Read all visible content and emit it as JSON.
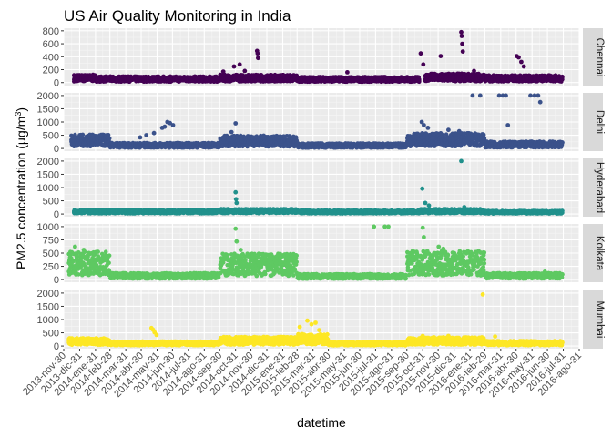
{
  "chart_data": {
    "type": "scatter",
    "title": "US Air Quality Monitoring in India",
    "xlabel": "datetime",
    "ylabel": "PM2.5 concentration (μg/m",
    "ylabel_superscript": "3",
    "ylabel_close": ")",
    "xlim": [
      "2013-11-30",
      "2016-08-31"
    ],
    "x_ticks": [
      "2013-nov-30",
      "2013-dic-31",
      "2014-ene-31",
      "2014-feb-28",
      "2014-mar-31",
      "2014-abr-30",
      "2014-may-31",
      "2014-jun-30",
      "2014-jul-31",
      "2014-ago-31",
      "2014-sep-30",
      "2014-oct-31",
      "2014-nov-30",
      "2014-dic-31",
      "2015-ene-31",
      "2015-feb-28",
      "2015-mar-31",
      "2015-abr-30",
      "2015-may-31",
      "2015-jun-30",
      "2015-jul-31",
      "2015-ago-31",
      "2015-sep-30",
      "2015-oct-31",
      "2015-nov-30",
      "2015-dic-31",
      "2016-ene-31",
      "2016-feb-29",
      "2016-mar-31",
      "2016-abr-30",
      "2016-may-31",
      "2016-jun-30",
      "2016-jul-31",
      "2016-ago-31"
    ],
    "x_tick_dates": [
      "2013-11-30",
      "2013-12-31",
      "2014-01-31",
      "2014-02-28",
      "2014-03-31",
      "2014-04-30",
      "2014-05-31",
      "2014-06-30",
      "2014-07-31",
      "2014-08-31",
      "2014-09-30",
      "2014-10-31",
      "2014-11-30",
      "2014-12-31",
      "2015-01-31",
      "2015-02-28",
      "2015-03-31",
      "2015-04-30",
      "2015-05-31",
      "2015-06-30",
      "2015-07-31",
      "2015-08-31",
      "2015-09-30",
      "2015-10-31",
      "2015-11-30",
      "2015-12-31",
      "2016-01-31",
      "2016-02-29",
      "2016-03-31",
      "2016-04-30",
      "2016-05-31",
      "2016-06-30",
      "2016-07-31",
      "2016-08-31"
    ],
    "grid": true,
    "legend": "none",
    "panels": [
      {
        "name": "Chennai",
        "color": "#440154",
        "ylim": [
          -60,
          840
        ],
        "y_ticks": [
          0,
          200,
          400,
          600,
          800
        ],
        "y_tick_labels": [
          "0",
          "200",
          "400",
          "600",
          "800"
        ],
        "series": [
          {
            "start": "2013-12-20",
            "end": "2014-01-31",
            "base": 70
          },
          {
            "start": "2014-02-01",
            "end": "2014-09-30",
            "base": 55
          },
          {
            "start": "2014-10-01",
            "end": "2015-02-28",
            "base": 70
          },
          {
            "start": "2015-03-01",
            "end": "2015-10-25",
            "base": 50
          },
          {
            "start": "2015-11-05",
            "end": "2016-02-29",
            "base": 80
          },
          {
            "start": "2016-03-01",
            "end": "2016-07-31",
            "base": 65
          }
        ],
        "outliers": [
          [
            "2014-10-07",
            170
          ],
          [
            "2014-10-28",
            250
          ],
          [
            "2014-11-08",
            280
          ],
          [
            "2014-11-18",
            180
          ],
          [
            "2014-12-12",
            490
          ],
          [
            "2014-12-13",
            450
          ],
          [
            "2014-12-14",
            380
          ],
          [
            "2015-06-06",
            160
          ],
          [
            "2015-10-27",
            450
          ],
          [
            "2015-11-01",
            280
          ],
          [
            "2015-12-05",
            410
          ],
          [
            "2016-01-14",
            780
          ],
          [
            "2016-01-15",
            720
          ],
          [
            "2016-01-16",
            600
          ],
          [
            "2016-01-17",
            480
          ],
          [
            "2016-02-08",
            180
          ],
          [
            "2016-05-01",
            410
          ],
          [
            "2016-05-05",
            390
          ],
          [
            "2016-05-10",
            320
          ],
          [
            "2016-05-15",
            250
          ]
        ]
      },
      {
        "name": "Delhi",
        "color": "#3b528b",
        "ylim": [
          -100,
          2100
        ],
        "y_ticks": [
          0,
          500,
          1000,
          1500,
          2000
        ],
        "y_tick_labels": [
          "0",
          "500",
          "1000",
          "1500",
          "2000"
        ],
        "series": [
          {
            "start": "2013-12-15",
            "end": "2014-02-28",
            "base": 300
          },
          {
            "start": "2014-03-01",
            "end": "2014-09-30",
            "base": 120
          },
          {
            "start": "2014-10-01",
            "end": "2015-02-28",
            "base": 280
          },
          {
            "start": "2015-03-01",
            "end": "2015-09-30",
            "base": 110
          },
          {
            "start": "2015-10-01",
            "end": "2016-02-29",
            "base": 330
          },
          {
            "start": "2016-03-01",
            "end": "2016-07-31",
            "base": 150
          }
        ],
        "outliers": [
          [
            "2014-04-28",
            420
          ],
          [
            "2014-05-10",
            500
          ],
          [
            "2014-05-25",
            580
          ],
          [
            "2014-06-10",
            780
          ],
          [
            "2014-06-15",
            820
          ],
          [
            "2014-06-20",
            1000
          ],
          [
            "2014-06-25",
            960
          ],
          [
            "2014-07-01",
            880
          ],
          [
            "2014-10-31",
            950
          ],
          [
            "2014-10-23",
            620
          ],
          [
            "2015-10-29",
            1000
          ],
          [
            "2015-11-02",
            880
          ],
          [
            "2015-11-10",
            780
          ],
          [
            "2015-12-20",
            700
          ],
          [
            "2016-01-10",
            650
          ],
          [
            "2016-02-05",
            2000
          ],
          [
            "2016-02-20",
            2000
          ],
          [
            "2016-03-28",
            2000
          ],
          [
            "2016-04-04",
            2000
          ],
          [
            "2016-04-10",
            2000
          ],
          [
            "2016-04-14",
            880
          ],
          [
            "2016-05-28",
            2000
          ],
          [
            "2016-06-05",
            2000
          ],
          [
            "2016-06-12",
            2000
          ],
          [
            "2016-06-16",
            1750
          ]
        ]
      },
      {
        "name": "Hyderabad",
        "color": "#21918c",
        "ylim": [
          -100,
          2100
        ],
        "y_ticks": [
          0,
          500,
          1000,
          1500,
          2000
        ],
        "y_tick_labels": [
          "0",
          "500",
          "1000",
          "1500",
          "2000"
        ],
        "series": [
          {
            "start": "2013-12-20",
            "end": "2014-09-30",
            "base": 90
          },
          {
            "start": "2014-10-01",
            "end": "2015-02-28",
            "base": 110
          },
          {
            "start": "2015-03-01",
            "end": "2015-10-25",
            "base": 80
          },
          {
            "start": "2015-10-26",
            "end": "2016-02-29",
            "base": 110
          },
          {
            "start": "2016-03-01",
            "end": "2016-07-31",
            "base": 70
          }
        ],
        "outliers": [
          [
            "2014-10-31",
            820
          ],
          [
            "2014-11-01",
            560
          ],
          [
            "2014-11-02",
            420
          ],
          [
            "2015-10-30",
            960
          ],
          [
            "2015-11-05",
            420
          ],
          [
            "2015-11-12",
            320
          ],
          [
            "2016-01-14",
            2000
          ],
          [
            "2016-01-20",
            260
          ]
        ]
      },
      {
        "name": "Kolkata",
        "color": "#5ec962",
        "ylim": [
          -50,
          1050
        ],
        "y_ticks": [
          0,
          250,
          500,
          750,
          1000
        ],
        "y_tick_labels": [
          "0",
          "250",
          "500",
          "750",
          "1000"
        ],
        "series": [
          {
            "start": "2013-12-10",
            "end": "2014-02-28",
            "base": 300
          },
          {
            "start": "2014-03-01",
            "end": "2014-09-30",
            "base": 70
          },
          {
            "start": "2014-10-01",
            "end": "2015-02-28",
            "base": 280
          },
          {
            "start": "2015-03-01",
            "end": "2015-09-30",
            "base": 60
          },
          {
            "start": "2015-10-01",
            "end": "2016-02-29",
            "base": 310
          },
          {
            "start": "2016-03-01",
            "end": "2016-07-31",
            "base": 70
          }
        ],
        "outliers": [
          [
            "2013-12-22",
            620
          ],
          [
            "2014-01-08",
            560
          ],
          [
            "2014-02-05",
            440
          ],
          [
            "2014-10-31",
            960
          ],
          [
            "2014-11-02",
            720
          ],
          [
            "2014-11-10",
            560
          ],
          [
            "2015-07-28",
            1000
          ],
          [
            "2015-08-18",
            1000
          ],
          [
            "2015-08-25",
            1000
          ],
          [
            "2015-10-31",
            980
          ],
          [
            "2015-11-02",
            800
          ],
          [
            "2015-12-01",
            620
          ],
          [
            "2015-12-10",
            580
          ],
          [
            "2016-01-10",
            420
          ],
          [
            "2016-06-25",
            150
          ]
        ]
      },
      {
        "name": "Mumbai",
        "color": "#fde725",
        "ylim": [
          -100,
          2100
        ],
        "y_ticks": [
          0,
          500,
          1000,
          1500,
          2000
        ],
        "y_tick_labels": [
          "0",
          "500",
          "1000",
          "1500",
          "2000"
        ],
        "series": [
          {
            "start": "2013-12-10",
            "end": "2014-02-28",
            "base": 170
          },
          {
            "start": "2014-03-01",
            "end": "2014-09-30",
            "base": 100
          },
          {
            "start": "2014-10-01",
            "end": "2015-02-28",
            "base": 200
          },
          {
            "start": "2015-03-01",
            "end": "2015-04-30",
            "base": 260
          },
          {
            "start": "2015-05-01",
            "end": "2015-09-30",
            "base": 90
          },
          {
            "start": "2015-10-01",
            "end": "2016-02-29",
            "base": 190
          },
          {
            "start": "2016-03-01",
            "end": "2016-07-31",
            "base": 110
          }
        ],
        "outliers": [
          [
            "2014-05-20",
            680
          ],
          [
            "2014-05-23",
            620
          ],
          [
            "2014-05-26",
            520
          ],
          [
            "2014-05-30",
            420
          ],
          [
            "2015-03-05",
            720
          ],
          [
            "2015-03-20",
            960
          ],
          [
            "2015-03-28",
            820
          ],
          [
            "2015-04-05",
            880
          ],
          [
            "2015-04-12",
            600
          ],
          [
            "2015-10-31",
            380
          ],
          [
            "2015-12-20",
            380
          ],
          [
            "2016-02-25",
            1950
          ],
          [
            "2016-03-20",
            360
          ]
        ]
      }
    ]
  }
}
